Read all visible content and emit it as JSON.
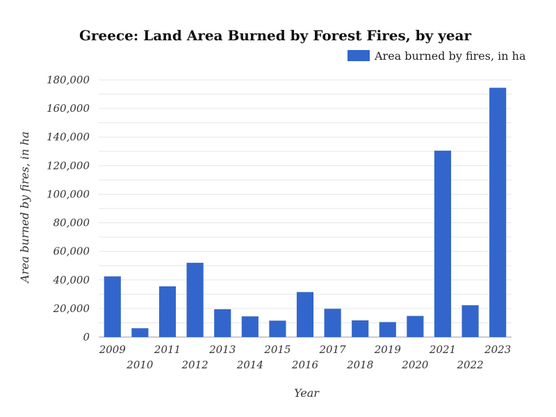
{
  "chart_data": {
    "type": "bar",
    "title": "Greece: Land Area Burned by Forest Fires, by year",
    "xlabel": "Year",
    "ylabel": "Area burned by fires, in ha",
    "categories": [
      "2009",
      "2010",
      "2011",
      "2012",
      "2013",
      "2014",
      "2015",
      "2016",
      "2017",
      "2018",
      "2019",
      "2020",
      "2021",
      "2022",
      "2023"
    ],
    "series": [
      {
        "name": "Area burned by fires, in ha",
        "color": "#3366cc",
        "values": [
          42500,
          6200,
          35500,
          52000,
          19500,
          14500,
          11500,
          31500,
          19800,
          11700,
          10500,
          14800,
          130500,
          22300,
          174500
        ]
      }
    ],
    "ylim": [
      0,
      180000
    ],
    "yticks": [
      0,
      20000,
      40000,
      60000,
      80000,
      100000,
      120000,
      140000,
      160000,
      180000
    ],
    "ytick_labels": [
      "0",
      "20,000",
      "40,000",
      "60,000",
      "80,000",
      "100,000",
      "120,000",
      "140,000",
      "160,000",
      "180,000"
    ],
    "grid": true,
    "legend_position": "top-right"
  }
}
